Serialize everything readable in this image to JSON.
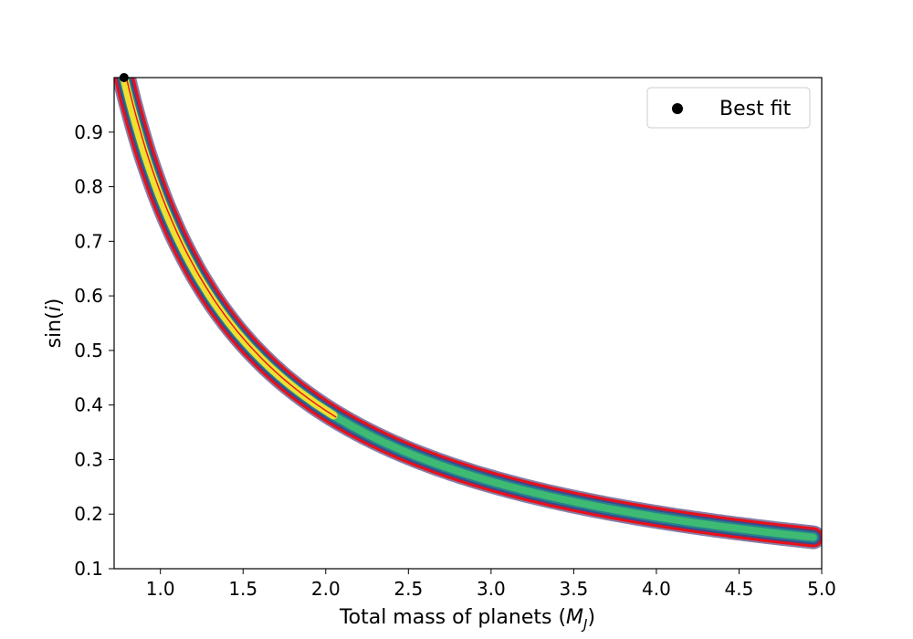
{
  "chart_data": {
    "type": "heatmap",
    "title": "",
    "xlabel_main": "Total mass of planets (",
    "xlabel_sym": "M",
    "xlabel_sub": "J",
    "xlabel_end": ")",
    "ylabel_main": "sin(",
    "ylabel_sym": "i",
    "ylabel_end": ")",
    "xlim": [
      0.72,
      5.0
    ],
    "ylim": [
      0.1,
      1.0
    ],
    "xticks": [
      {
        "value": 1.0,
        "label": "1.0"
      },
      {
        "value": 1.5,
        "label": "1.5"
      },
      {
        "value": 2.0,
        "label": "2.0"
      },
      {
        "value": 2.5,
        "label": "2.5"
      },
      {
        "value": 3.0,
        "label": "3.0"
      },
      {
        "value": 3.5,
        "label": "3.5"
      },
      {
        "value": 4.0,
        "label": "4.0"
      },
      {
        "value": 4.5,
        "label": "4.5"
      },
      {
        "value": 5.0,
        "label": "5.0"
      }
    ],
    "yticks": [
      {
        "value": 0.1,
        "label": "0.1"
      },
      {
        "value": 0.2,
        "label": "0.2"
      },
      {
        "value": 0.3,
        "label": "0.3"
      },
      {
        "value": 0.4,
        "label": "0.4"
      },
      {
        "value": 0.5,
        "label": "0.5"
      },
      {
        "value": 0.6,
        "label": "0.6"
      },
      {
        "value": 0.7,
        "label": "0.7"
      },
      {
        "value": 0.8,
        "label": "0.8"
      },
      {
        "value": 0.9,
        "label": "0.9"
      }
    ],
    "ridge_constant": 0.78,
    "ridge_x_range": [
      0.72,
      4.95
    ],
    "best_fit": {
      "x": 0.78,
      "y": 1.0
    },
    "legend": {
      "label": "Best fit",
      "placement": "top-right"
    },
    "grid": false,
    "colors": {
      "contour": "#e8101a",
      "core": "#f0e030",
      "inner": "#3fba72",
      "mid": "#26828e",
      "outer": "#3b4a8c",
      "edge": "#23135e",
      "marker": "#000000"
    }
  }
}
